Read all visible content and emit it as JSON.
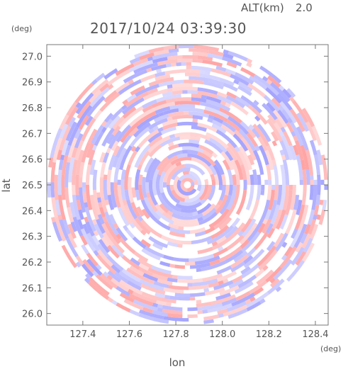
{
  "header": {
    "altitude_label": "ALT(km)",
    "altitude_value": "2.0",
    "timestamp": "2017/10/24 03:39:30"
  },
  "chart_data": {
    "type": "heatmap",
    "title": "2017/10/24 03:39:30",
    "xlabel": "lon",
    "ylabel": "lat",
    "x_unit": "(deg)",
    "y_unit": "(deg)",
    "xlim": [
      127.245,
      128.455
    ],
    "ylim": [
      25.955,
      27.045
    ],
    "x_ticks": [
      127.4,
      127.6,
      127.8,
      128.0,
      128.2,
      128.4
    ],
    "x_tick_labels": [
      "127.4",
      "127.6",
      "127.8",
      "128.0",
      "128.2",
      "128.4"
    ],
    "y_ticks": [
      26.0,
      26.1,
      26.2,
      26.3,
      26.4,
      26.5,
      26.6,
      26.7,
      26.8,
      26.9,
      27.0
    ],
    "y_tick_labels": [
      "26.0",
      "26.1",
      "26.2",
      "26.3",
      "26.4",
      "26.5",
      "26.6",
      "26.7",
      "26.8",
      "26.9",
      "27.0"
    ],
    "center": {
      "lon": 127.85,
      "lat": 26.5
    },
    "radius_lat_deg": 0.545,
    "colors": {
      "positive": "#ff9a9a",
      "negative": "#9a9aff",
      "neutral": "#ffffff"
    },
    "grid": false
  }
}
